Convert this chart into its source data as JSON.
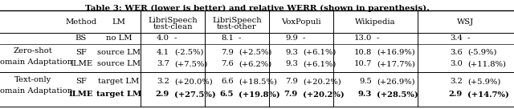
{
  "title": "Table 3: WER (lower is better) and relative WERR (shown in parenthesis).",
  "rows": [
    {
      "group_line1": "",
      "group_line2": "",
      "method": "BS",
      "lm": "no LM",
      "ls_clean_val": "4.0",
      "ls_clean_rel": "-",
      "ls_other_val": "8.1",
      "ls_other_rel": "-",
      "vox_val": "9.9",
      "vox_rel": "-",
      "wiki_val": "13.0",
      "wiki_rel": "-",
      "wsj_val": "3.4",
      "wsj_rel": "-",
      "bold": false
    },
    {
      "group_line1": "Zero-shot",
      "group_line2": "Domain Adaptation",
      "method": "SF",
      "lm": "source LM",
      "ls_clean_val": "4.1",
      "ls_clean_rel": "(-2.5%)",
      "ls_other_val": "7.9",
      "ls_other_rel": "(+2.5%)",
      "vox_val": "9.3",
      "vox_rel": "(+6.1%)",
      "wiki_val": "10.8",
      "wiki_rel": "(+16.9%)",
      "wsj_val": "3.6",
      "wsj_rel": "(-5.9%)",
      "bold": false
    },
    {
      "group_line1": "",
      "group_line2": "",
      "method": "ILME",
      "lm": "source LM",
      "ls_clean_val": "3.7",
      "ls_clean_rel": "(+7.5%)",
      "ls_other_val": "7.6",
      "ls_other_rel": "(+6.2%)",
      "vox_val": "9.3",
      "vox_rel": "(+6.1%)",
      "wiki_val": "10.7",
      "wiki_rel": "(+17.7%)",
      "wsj_val": "3.0",
      "wsj_rel": "(+11.8%)",
      "bold": false
    },
    {
      "group_line1": "Text-only",
      "group_line2": "Domain Adaptation",
      "method": "SF",
      "lm": "target LM",
      "ls_clean_val": "3.2",
      "ls_clean_rel": "(+20.0%)",
      "ls_other_val": "6.6",
      "ls_other_rel": "(+18.5%)",
      "vox_val": "7.9",
      "vox_rel": "(+20.2%)",
      "wiki_val": "9.5",
      "wiki_rel": "(+26.9%)",
      "wsj_val": "3.2",
      "wsj_rel": "(+5.9%)",
      "bold": false
    },
    {
      "group_line1": "",
      "group_line2": "",
      "method": "ILME",
      "lm": "target LM",
      "ls_clean_val": "2.9",
      "ls_clean_rel": "(+27.5%)",
      "ls_other_val": "6.5",
      "ls_other_rel": "(+19.8%)",
      "vox_val": "7.9",
      "vox_rel": "(+20.2%)",
      "wiki_val": "9.3",
      "wiki_rel": "(+28.5%)",
      "wsj_val": "2.9",
      "wsj_rel": "(+14.7%)",
      "bold": true
    }
  ],
  "background_color": "#ffffff",
  "font_size": 7.2,
  "title_font_size": 7.5
}
